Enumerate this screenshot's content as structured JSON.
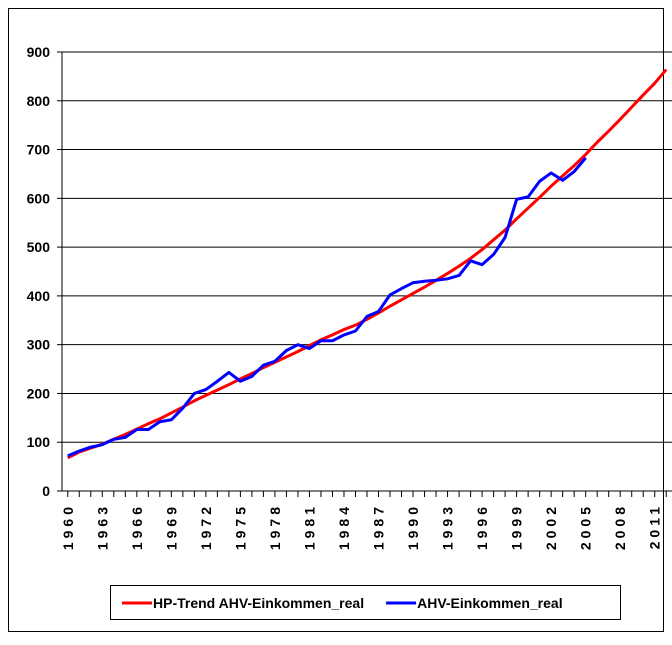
{
  "chart_data": {
    "type": "line",
    "x": [
      1960,
      1961,
      1962,
      1963,
      1964,
      1965,
      1966,
      1967,
      1968,
      1969,
      1970,
      1971,
      1972,
      1973,
      1974,
      1975,
      1976,
      1977,
      1978,
      1979,
      1980,
      1981,
      1982,
      1983,
      1984,
      1985,
      1986,
      1987,
      1988,
      1989,
      1990,
      1991,
      1992,
      1993,
      1994,
      1995,
      1996,
      1997,
      1998,
      1999,
      2000,
      2001,
      2002,
      2003,
      2004,
      2005,
      2006,
      2007,
      2008,
      2009,
      2010,
      2011,
      2012
    ],
    "series": [
      {
        "name": "HP-Trend AHV-Einkommen_real",
        "color": "#ff0000",
        "values": [
          68,
          80,
          88,
          96,
          106,
          116,
          127,
          138,
          148,
          160,
          172,
          185,
          196,
          207,
          218,
          230,
          241,
          253,
          264,
          275,
          286,
          298,
          310,
          320,
          331,
          340,
          352,
          365,
          379,
          392,
          405,
          418,
          432,
          446,
          461,
          477,
          495,
          515,
          535,
          558,
          580,
          602,
          625,
          646,
          667,
          690,
          715,
          738,
          762,
          787,
          812,
          836,
          864
        ]
      },
      {
        "name": "AHV-Einkommen_real",
        "color": "#0000ff",
        "values": [
          72,
          82,
          90,
          95,
          106,
          110,
          126,
          126,
          142,
          146,
          170,
          200,
          208,
          225,
          243,
          225,
          235,
          258,
          266,
          288,
          300,
          292,
          308,
          308,
          320,
          328,
          358,
          368,
          402,
          415,
          427,
          430,
          432,
          435,
          442,
          472,
          464,
          485,
          520,
          598,
          603,
          635,
          652,
          637,
          655,
          683,
          null,
          null,
          null,
          null,
          null,
          null,
          null
        ]
      }
    ],
    "xlim": [
      1959.5,
      2012.5
    ],
    "xticks": [
      1960,
      1963,
      1966,
      1969,
      1972,
      1975,
      1978,
      1981,
      1984,
      1987,
      1990,
      1993,
      1996,
      1999,
      2002,
      2005,
      2008,
      2011
    ],
    "ylim": [
      0,
      900
    ],
    "yticks": [
      0,
      100,
      200,
      300,
      400,
      500,
      600,
      700,
      800,
      900
    ],
    "grid": true,
    "legend": "bottom"
  }
}
